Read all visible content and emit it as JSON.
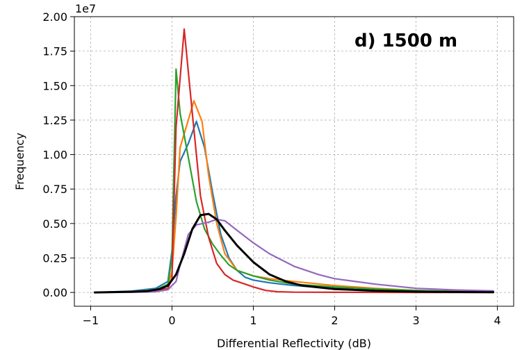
{
  "chart_data": {
    "type": "line",
    "title": "",
    "annotation": "d) 1500 m",
    "xlabel": "Differential Reflectivity (dB)",
    "ylabel": "Frequency",
    "y_exponent_label": "1e7",
    "xlim": [
      -1.2,
      4.2
    ],
    "ylim": [
      -0.1,
      2.0
    ],
    "y_scale": 10000000,
    "xticks": [
      -1,
      0,
      1,
      2,
      3,
      4
    ],
    "xtick_labels": [
      "−1",
      "0",
      "1",
      "2",
      "3",
      "4"
    ],
    "yticks": [
      0.0,
      0.25,
      0.5,
      0.75,
      1.0,
      1.25,
      1.5,
      1.75,
      2.0
    ],
    "ytick_labels": [
      "0.00",
      "0.25",
      "0.50",
      "0.75",
      "1.00",
      "1.25",
      "1.50",
      "1.75",
      "2.00"
    ],
    "grid": true,
    "series": [
      {
        "name": "blue",
        "color": "#1f77b4",
        "x": [
          -0.95,
          -0.5,
          -0.2,
          -0.05,
          0.0,
          0.05,
          0.1,
          0.2,
          0.3,
          0.4,
          0.5,
          0.6,
          0.7,
          0.8,
          0.9,
          1.0,
          1.2,
          1.5,
          2.0,
          2.5,
          3.0,
          3.5,
          3.95
        ],
        "y": [
          0.0,
          0.01,
          0.03,
          0.08,
          0.3,
          0.7,
          0.95,
          1.08,
          1.24,
          1.05,
          0.72,
          0.42,
          0.25,
          0.16,
          0.11,
          0.09,
          0.07,
          0.05,
          0.03,
          0.015,
          0.008,
          0.004,
          0.002
        ]
      },
      {
        "name": "orange",
        "color": "#ff7f0e",
        "x": [
          -0.95,
          -0.5,
          -0.2,
          -0.05,
          0.0,
          0.05,
          0.1,
          0.2,
          0.27,
          0.37,
          0.45,
          0.55,
          0.65,
          0.8,
          1.0,
          1.2,
          1.5,
          2.0,
          2.5,
          3.0,
          3.5,
          3.95
        ],
        "y": [
          0.0,
          0.005,
          0.02,
          0.05,
          0.15,
          0.55,
          1.05,
          1.25,
          1.39,
          1.24,
          0.85,
          0.5,
          0.28,
          0.16,
          0.12,
          0.1,
          0.08,
          0.05,
          0.03,
          0.015,
          0.008,
          0.004
        ]
      },
      {
        "name": "green",
        "color": "#2ca02c",
        "x": [
          -0.95,
          -0.5,
          -0.2,
          -0.05,
          0.0,
          0.05,
          0.1,
          0.2,
          0.3,
          0.4,
          0.5,
          0.6,
          0.7,
          0.8,
          1.0,
          1.2,
          1.5,
          2.0,
          2.5,
          3.0,
          3.5,
          3.95
        ],
        "y": [
          0.0,
          0.005,
          0.02,
          0.06,
          0.25,
          1.62,
          1.3,
          0.98,
          0.66,
          0.46,
          0.35,
          0.27,
          0.2,
          0.16,
          0.12,
          0.09,
          0.06,
          0.04,
          0.025,
          0.015,
          0.008,
          0.005
        ]
      },
      {
        "name": "red",
        "color": "#d62728",
        "x": [
          -0.95,
          -0.5,
          -0.2,
          -0.05,
          0.0,
          0.05,
          0.15,
          0.25,
          0.35,
          0.45,
          0.55,
          0.65,
          0.75,
          0.9,
          1.0,
          1.15,
          1.3,
          1.5,
          2.0,
          3.0,
          3.95
        ],
        "y": [
          0.0,
          0.003,
          0.01,
          0.03,
          0.1,
          1.2,
          1.91,
          1.3,
          0.7,
          0.4,
          0.21,
          0.13,
          0.09,
          0.06,
          0.04,
          0.015,
          0.005,
          0.002,
          0.001,
          0.0,
          0.0
        ]
      },
      {
        "name": "purple",
        "color": "#9467bd",
        "x": [
          -0.95,
          -0.5,
          -0.2,
          -0.05,
          0.05,
          0.1,
          0.2,
          0.3,
          0.45,
          0.55,
          0.65,
          0.8,
          1.0,
          1.2,
          1.5,
          1.8,
          2.0,
          2.5,
          3.0,
          3.5,
          3.95
        ],
        "y": [
          0.0,
          0.001,
          0.005,
          0.02,
          0.08,
          0.2,
          0.42,
          0.49,
          0.51,
          0.53,
          0.52,
          0.45,
          0.36,
          0.28,
          0.19,
          0.13,
          0.1,
          0.06,
          0.03,
          0.018,
          0.012
        ]
      },
      {
        "name": "black",
        "color": "#000000",
        "width": 3,
        "x": [
          -0.95,
          -0.5,
          -0.3,
          -0.15,
          -0.05,
          0.05,
          0.15,
          0.25,
          0.35,
          0.45,
          0.55,
          0.65,
          0.8,
          1.0,
          1.2,
          1.4,
          1.6,
          2.0,
          2.5,
          3.0,
          3.5,
          3.95
        ],
        "y": [
          0.0,
          0.005,
          0.01,
          0.025,
          0.05,
          0.13,
          0.28,
          0.46,
          0.56,
          0.57,
          0.53,
          0.45,
          0.34,
          0.22,
          0.13,
          0.08,
          0.05,
          0.025,
          0.012,
          0.006,
          0.003,
          0.002
        ]
      }
    ]
  }
}
